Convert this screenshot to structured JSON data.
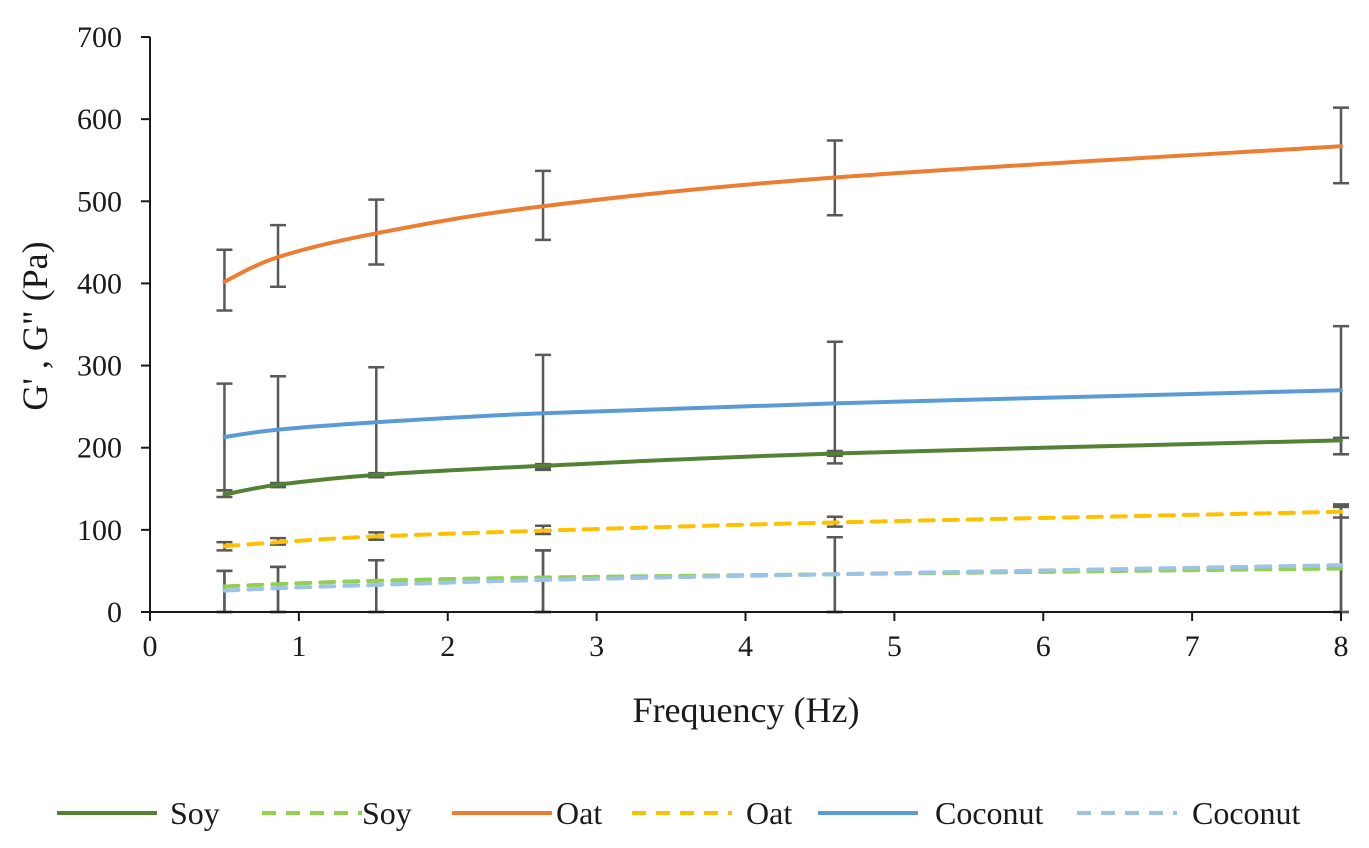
{
  "chart_data": {
    "type": "line",
    "title": "",
    "xlabel": "Frequency (Hz)",
    "ylabel": "G' , G\" (Pa)",
    "xlim": [
      0,
      8
    ],
    "ylim": [
      0,
      700
    ],
    "x_ticks": [
      "0",
      "1",
      "2",
      "3",
      "4",
      "5",
      "6",
      "7",
      "8"
    ],
    "y_ticks": [
      "0",
      "100",
      "200",
      "300",
      "400",
      "500",
      "600",
      "700"
    ],
    "grid": false,
    "legend_position": "bottom",
    "x": [
      0.5,
      0.86,
      1.52,
      2.64,
      4.6,
      8.0
    ],
    "series": [
      {
        "name": "Soy",
        "style": "solid",
        "color": "#548235",
        "values": [
          143,
          155,
          167,
          178,
          193,
          209
        ],
        "error_low": [
          140,
          152,
          164,
          173,
          181,
          192
        ],
        "error_high": [
          148,
          157,
          169,
          180,
          196,
          212
        ]
      },
      {
        "name": "Soy",
        "style": "dashed",
        "color": "#92D050",
        "values": [
          31,
          34,
          38,
          42,
          46,
          53
        ],
        "error_low": [
          0,
          0,
          0,
          0,
          0,
          0
        ],
        "error_high": [
          50,
          55,
          63,
          75,
          91,
          128
        ]
      },
      {
        "name": "Oat",
        "style": "solid",
        "color": "#ED7D31",
        "values": [
          402,
          432,
          461,
          494,
          529,
          567
        ],
        "error_low": [
          367,
          396,
          423,
          453,
          483,
          522
        ],
        "error_high": [
          441,
          471,
          502,
          537,
          574,
          614
        ]
      },
      {
        "name": "Oat",
        "style": "dashed",
        "color": "#FFC000",
        "values": [
          80,
          85,
          92,
          99,
          109,
          122
        ],
        "error_low": [
          75,
          82,
          88,
          95,
          104,
          115
        ],
        "error_high": [
          85,
          90,
          97,
          105,
          116,
          131
        ]
      },
      {
        "name": "Coconut",
        "style": "solid",
        "color": "#5B9BD5",
        "values": [
          213,
          222,
          231,
          242,
          254,
          270
        ],
        "error_low": [
          148,
          155,
          164,
          175,
          190,
          192
        ],
        "error_high": [
          278,
          287,
          298,
          313,
          329,
          348
        ]
      },
      {
        "name": "Coconut",
        "style": "dashed",
        "color": "#9DC3E6",
        "values": [
          26,
          29,
          33,
          39,
          46,
          57
        ],
        "error_low": [
          0,
          0,
          0,
          0,
          0,
          0
        ],
        "error_high": [
          50,
          55,
          63,
          75,
          91,
          128
        ]
      }
    ]
  }
}
